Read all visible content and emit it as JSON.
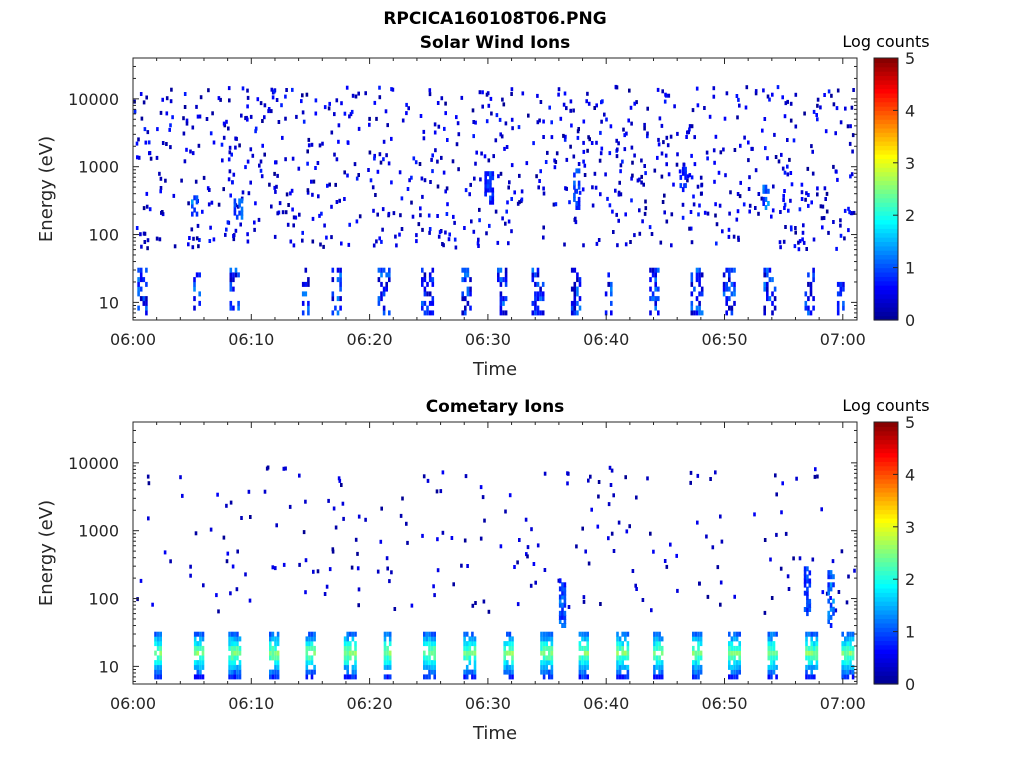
{
  "figure_title": "RPCICA160108T06.PNG",
  "colormap": [
    "#00008f",
    "#0000ff",
    "#0080ff",
    "#00ffff",
    "#80ff80",
    "#ffff00",
    "#ff8000",
    "#ff0000",
    "#800000"
  ],
  "chart_data": [
    {
      "type": "heatmap",
      "title": "Solar Wind Ions",
      "xlabel": "Time",
      "ylabel": "Energy (eV)",
      "x_ticks": [
        "06:00",
        "06:10",
        "06:20",
        "06:30",
        "06:40",
        "06:50",
        "07:00"
      ],
      "x_range_minutes": [
        0,
        61.2
      ],
      "y_scale": "log",
      "y_ticks": [
        "10",
        "100",
        "1000",
        "10000"
      ],
      "y_range": [
        5.5,
        40000
      ],
      "grid": false,
      "colorbar": {
        "label": "Log counts",
        "ticks": [
          "0",
          "1",
          "2",
          "3",
          "4",
          "5"
        ],
        "range": [
          0,
          5
        ]
      },
      "band_centers_min": [
        0.7,
        5.4,
        8.6,
        14.6,
        17.2,
        21.2,
        24.8,
        28.2,
        31.2,
        34.2,
        37.4,
        40.2,
        44.0,
        47.6,
        50.4,
        53.8,
        57.2,
        59.8
      ],
      "low_energy_band_eV": [
        7,
        30
      ],
      "low_energy_band_log_counts": [
        0.2,
        1.3
      ],
      "scatter_energy_range_eV": [
        60,
        15000
      ],
      "scatter_log_counts": [
        0.0,
        0.8
      ],
      "enhanced_patches": [
        {
          "t_min": 5.2,
          "e_min_eV": 200,
          "e_max_eV": 400,
          "log_counts": 1.2
        },
        {
          "t_min": 8.8,
          "e_min_eV": 180,
          "e_max_eV": 350,
          "log_counts": 1.1
        },
        {
          "t_min": 30.0,
          "e_min_eV": 300,
          "e_max_eV": 900,
          "log_counts": 0.9
        },
        {
          "t_min": 37.5,
          "e_min_eV": 250,
          "e_max_eV": 900,
          "log_counts": 1.0
        },
        {
          "t_min": 46.5,
          "e_min_eV": 400,
          "e_max_eV": 1000,
          "log_counts": 0.8
        },
        {
          "t_min": 53.5,
          "e_min_eV": 250,
          "e_max_eV": 500,
          "log_counts": 1.2
        }
      ]
    },
    {
      "type": "heatmap",
      "title": "Cometary Ions",
      "xlabel": "Time",
      "ylabel": "Energy (eV)",
      "x_ticks": [
        "06:00",
        "06:10",
        "06:20",
        "06:30",
        "06:40",
        "06:50",
        "07:00"
      ],
      "x_range_minutes": [
        0,
        61.2
      ],
      "y_scale": "log",
      "y_ticks": [
        "10",
        "100",
        "1000",
        "10000"
      ],
      "y_range": [
        5.5,
        40000
      ],
      "grid": false,
      "colorbar": {
        "label": "Log counts",
        "ticks": [
          "0",
          "1",
          "2",
          "3",
          "4",
          "5"
        ],
        "range": [
          0,
          5
        ]
      },
      "band_centers_min": [
        2.1,
        5.5,
        8.6,
        11.9,
        15.0,
        18.3,
        21.5,
        25.0,
        28.4,
        31.7,
        34.9,
        38.1,
        41.3,
        44.4,
        47.6,
        50.8,
        54.0,
        57.3,
        60.4
      ],
      "low_energy_band_eV": [
        7,
        35
      ],
      "low_energy_band_peak_log_counts": 2.5,
      "low_energy_band_edge_log_counts": 0.8,
      "scatter_energy_range_eV": [
        60,
        9000
      ],
      "scatter_log_counts": [
        0.0,
        0.6
      ],
      "enhanced_columns": [
        {
          "t_min": 36.3,
          "e_min_eV": 40,
          "e_max_eV": 200,
          "log_counts": 1.1
        },
        {
          "t_min": 57.0,
          "e_min_eV": 60,
          "e_max_eV": 300,
          "log_counts": 1.0
        },
        {
          "t_min": 59.0,
          "e_min_eV": 40,
          "e_max_eV": 250,
          "log_counts": 1.2
        }
      ]
    }
  ]
}
